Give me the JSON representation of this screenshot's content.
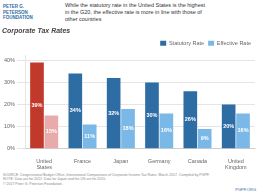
{
  "chart_data": {
    "type": "bar",
    "title": "While the statutory rate in the United States is the highest\nin the G20, the effective rate is more in line with those of\nother countries",
    "subtitle": "Corporate Tax Rates",
    "categories": [
      "United States",
      "France",
      "Japan",
      "Germany",
      "Canada",
      "United Kingdom"
    ],
    "series": [
      {
        "name": "Statutory Rate",
        "color": "#2e6da4",
        "colors": [
          "#c0392b",
          "#2e6da4",
          "#2e6da4",
          "#2e6da4",
          "#2e6da4",
          "#2e6da4"
        ],
        "values": [
          39,
          34,
          32,
          30,
          26,
          20
        ],
        "value_labels": [
          "39%",
          "34%",
          "32%",
          "30%",
          "26%",
          "20%"
        ]
      },
      {
        "name": "Effective Rate",
        "color": "#7ab8e8",
        "colors": [
          "#e8aaaa",
          "#7ab8e8",
          "#7ab8e8",
          "#7ab8e8",
          "#7ab8e8",
          "#7ab8e8"
        ],
        "values": [
          15,
          11,
          18,
          16,
          9,
          16
        ],
        "value_labels": [
          "15%",
          "11%",
          "18%",
          "16%",
          "9%",
          "16%"
        ]
      }
    ],
    "ylim": [
      0,
      42
    ],
    "yticks": [
      {
        "value": 0,
        "label": "0%"
      },
      {
        "value": 10,
        "label": "10%"
      },
      {
        "value": 20,
        "label": "20%"
      },
      {
        "value": 30,
        "label": "30%"
      },
      {
        "value": 40,
        "label": "40%"
      }
    ],
    "grid": true,
    "legend": "upper right",
    "data_labels": true,
    "annotations": [
      "PETER G.",
      "PETERSON",
      "FOUNDATION",
      "SOURCE: Congressional Budget Office, International Comparisons of Corporate Income Tax Rates, March 2017. Compiled by PGPF.\nNOTE: Data are for 2012. Data for Japan and the US are for 2015.\n© 2017 Peter G. Peterson Foundation.",
      "PGPF.ORG"
    ]
  }
}
